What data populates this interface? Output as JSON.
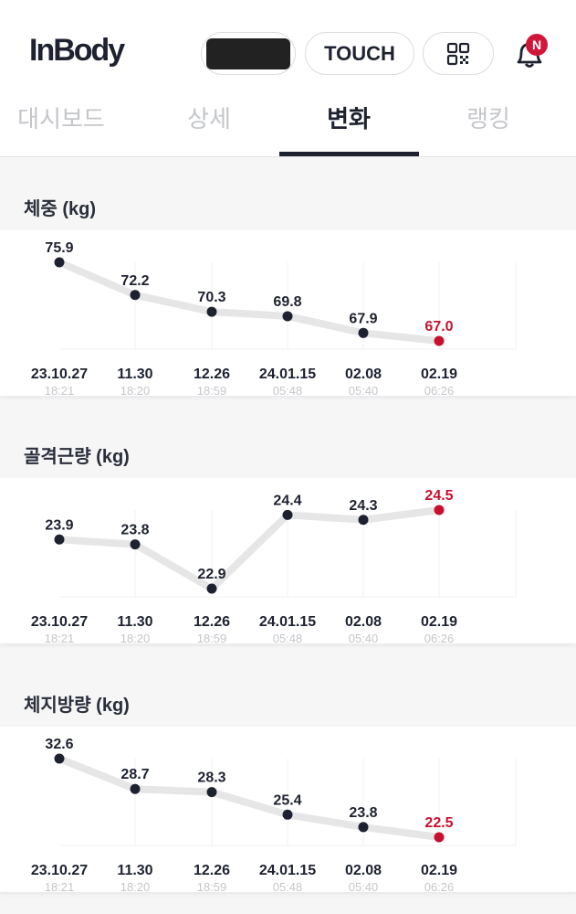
{
  "header": {
    "logo": "InBody",
    "touch_label": "TOUCH",
    "qr_icon": "qr-code-icon",
    "bell_icon": "bell-icon",
    "notification_badge": "N"
  },
  "tabs": [
    {
      "label": "대시보드",
      "active": false
    },
    {
      "label": "상세",
      "active": false
    },
    {
      "label": "변화",
      "active": true
    },
    {
      "label": "랭킹",
      "active": false
    }
  ],
  "colors": {
    "point": "#1e2230",
    "latest": "#c8102e",
    "line": "#e6e6e6",
    "active_tab": "#1e2230"
  },
  "chart_data": [
    {
      "type": "line",
      "title": "체중 (kg)",
      "dates": [
        "23.10.27",
        "11.30",
        "12.26",
        "24.01.15",
        "02.08",
        "02.19"
      ],
      "times": [
        "18:21",
        "18:20",
        "18:59",
        "05:48",
        "05:40",
        "06:26"
      ],
      "values": [
        75.9,
        72.2,
        70.3,
        69.8,
        67.9,
        67.0
      ],
      "labels": [
        "75.9",
        "72.2",
        "70.3",
        "69.8",
        "67.9",
        "67.0"
      ]
    },
    {
      "type": "line",
      "title": "골격근량 (kg)",
      "dates": [
        "23.10.27",
        "11.30",
        "12.26",
        "24.01.15",
        "02.08",
        "02.19"
      ],
      "times": [
        "18:21",
        "18:20",
        "18:59",
        "05:48",
        "05:40",
        "06:26"
      ],
      "values": [
        23.9,
        23.8,
        22.9,
        24.4,
        24.3,
        24.5
      ],
      "labels": [
        "23.9",
        "23.8",
        "22.9",
        "24.4",
        "24.3",
        "24.5"
      ]
    },
    {
      "type": "line",
      "title": "체지방량 (kg)",
      "dates": [
        "23.10.27",
        "11.30",
        "12.26",
        "24.01.15",
        "02.08",
        "02.19"
      ],
      "times": [
        "18:21",
        "18:20",
        "18:59",
        "05:48",
        "05:40",
        "06:26"
      ],
      "values": [
        32.6,
        28.7,
        28.3,
        25.4,
        23.8,
        22.5
      ],
      "labels": [
        "32.6",
        "28.7",
        "28.3",
        "25.4",
        "23.8",
        "22.5"
      ]
    }
  ]
}
